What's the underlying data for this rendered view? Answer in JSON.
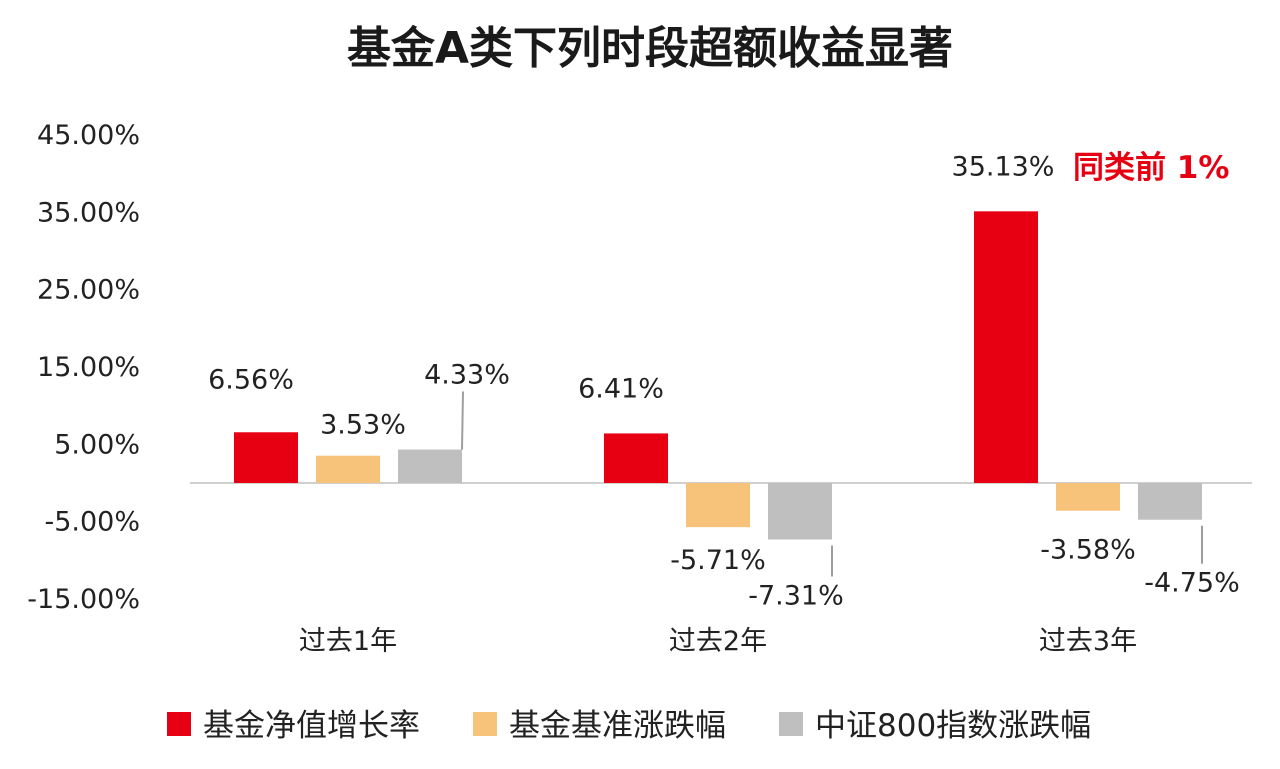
{
  "chart_data": {
    "type": "bar",
    "title": "基金A类下列时段超额收益显著",
    "categories": [
      "过去1年",
      "过去2年",
      "过去3年"
    ],
    "series": [
      {
        "name": "基金净值增长率",
        "values": [
          6.56,
          6.41,
          35.13
        ],
        "labels": [
          "6.56%",
          "6.41%",
          "35.13%"
        ],
        "color": "#e60012"
      },
      {
        "name": "基金基准涨跌幅",
        "values": [
          3.53,
          -5.71,
          -3.58
        ],
        "labels": [
          "3.53%",
          "-5.71%",
          "-3.58%"
        ],
        "color": "#f7c27a"
      },
      {
        "name": "中证800指数涨跌幅",
        "values": [
          4.33,
          -7.31,
          -4.75
        ],
        "labels": [
          "4.33%",
          "-7.31%",
          "-4.75%"
        ],
        "color": "#bfbfbf"
      }
    ],
    "yticks": [
      "45.00%",
      "35.00%",
      "25.00%",
      "15.00%",
      "5.00%",
      "-5.00%",
      "-15.00%"
    ],
    "ytick_values": [
      45,
      35,
      25,
      15,
      5,
      -5,
      -15
    ],
    "ylim": [
      -15,
      45
    ],
    "grid": false,
    "legend_position": "bottom",
    "annotation": {
      "text": "同类前 1%",
      "category": "过去3年",
      "series": "基金净值增长率"
    }
  }
}
